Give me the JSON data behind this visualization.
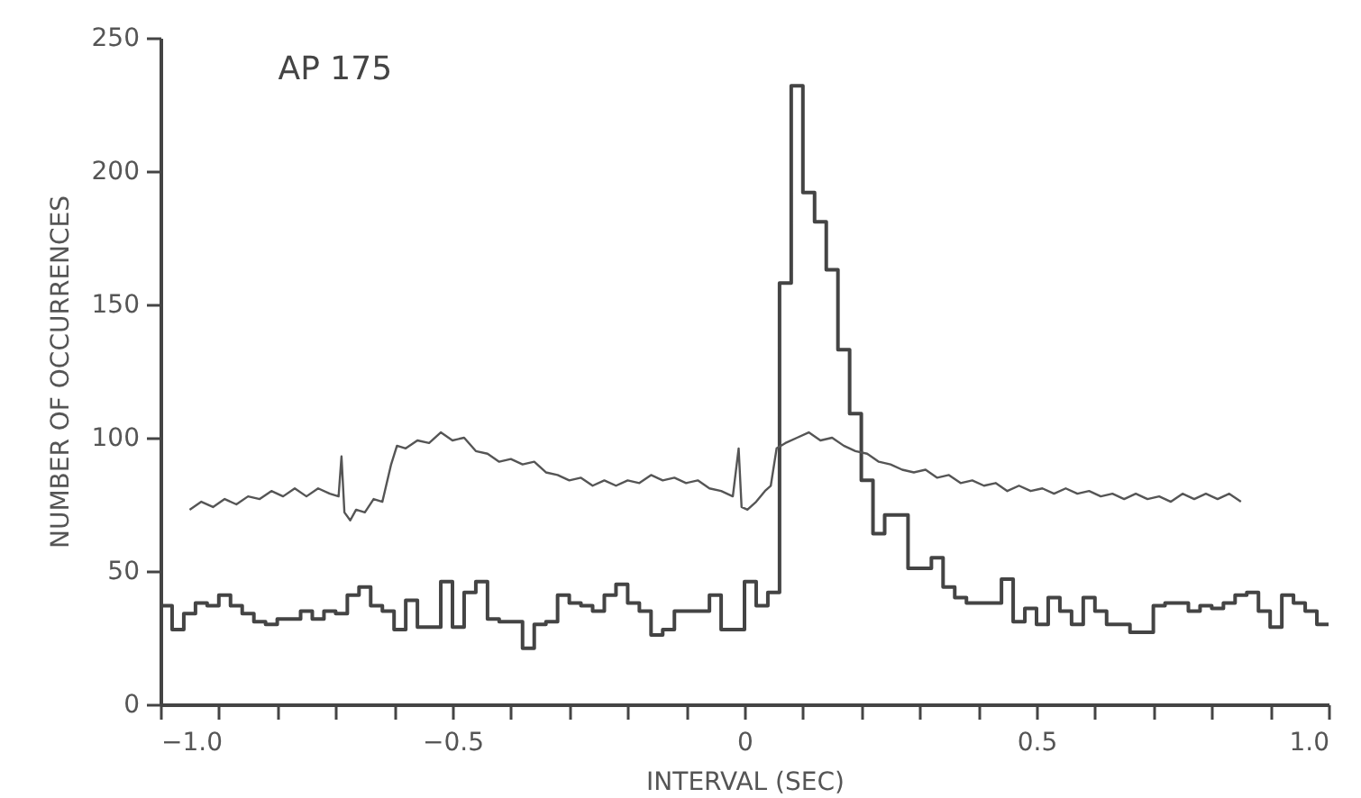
{
  "chart_data": {
    "type": "histogram",
    "title": "AP 175",
    "xlabel": "INTERVAL (SEC)",
    "ylabel": "NUMBER OF OCCURRENCES",
    "xlim": [
      -1,
      1
    ],
    "ylim": [
      0,
      250
    ],
    "xticks": [
      {
        "value": -1,
        "label": "−1.0"
      },
      {
        "value": -0.9,
        "label": null
      },
      {
        "value": -0.8,
        "label": null
      },
      {
        "value": -0.7,
        "label": null
      },
      {
        "value": -0.6,
        "label": null
      },
      {
        "value": -0.5,
        "label": "−0.5"
      },
      {
        "value": -0.4,
        "label": null
      },
      {
        "value": -0.3,
        "label": null
      },
      {
        "value": -0.2,
        "label": null
      },
      {
        "value": -0.1,
        "label": null
      },
      0,
      {
        "value": 0.1,
        "label": null
      },
      {
        "value": 0.2,
        "label": null
      },
      {
        "value": 0.3,
        "label": null
      },
      {
        "value": 0.4,
        "label": null
      },
      0.5,
      {
        "value": 0.6,
        "label": null
      },
      {
        "value": 0.7,
        "label": null
      },
      {
        "value": 0.8,
        "label": null
      },
      {
        "value": 0.9,
        "label": null
      },
      {
        "value": 1,
        "label": "1.0"
      }
    ],
    "yticks": [
      0,
      50,
      100,
      150,
      200,
      250
    ],
    "grid": false,
    "series": [
      {
        "color": "#444444",
        "bins": [
          -1,
          -0.98,
          -0.96,
          -0.94,
          -0.92,
          -0.9,
          -0.88,
          -0.86,
          -0.84,
          -0.82,
          -0.8,
          -0.78,
          -0.76,
          -0.74,
          -0.72,
          -0.7,
          -0.68,
          -0.66,
          -0.64,
          -0.62,
          -0.6,
          -0.58,
          -0.56,
          -0.54,
          -0.52,
          -0.5,
          -0.48,
          -0.46,
          -0.44,
          -0.42,
          -0.4,
          -0.38,
          -0.36,
          -0.34,
          -0.32,
          -0.3,
          -0.28,
          -0.26,
          -0.24,
          -0.22,
          -0.2,
          -0.18,
          -0.16,
          -0.14,
          -0.12,
          -0.1,
          -0.08,
          -0.06,
          -0.04,
          -0.02,
          0,
          0.02,
          0.04,
          0.06,
          0.08,
          0.1,
          0.12,
          0.14,
          0.16,
          0.18,
          0.2,
          0.22,
          0.24,
          0.26,
          0.28,
          0.3,
          0.32,
          0.34,
          0.36,
          0.38,
          0.4,
          0.42,
          0.44,
          0.46,
          0.48,
          0.5,
          0.52,
          0.54,
          0.56,
          0.58,
          0.6,
          0.62,
          0.64,
          0.66,
          0.68,
          0.7,
          0.72,
          0.74,
          0.76,
          0.78,
          0.8,
          0.82,
          0.84,
          0.86,
          0.88,
          0.9,
          0.92,
          0.94,
          0.96,
          0.98,
          1
        ],
        "values": [
          37,
          28,
          34,
          38,
          37,
          41,
          37,
          34,
          31,
          30,
          32,
          32,
          35,
          32,
          35,
          34,
          41,
          44,
          37,
          35,
          28,
          39,
          29,
          29,
          46,
          29,
          42,
          46,
          32,
          31,
          31,
          21,
          30,
          31,
          41,
          38,
          37,
          35,
          41,
          45,
          38,
          35,
          26,
          28,
          35,
          35,
          35,
          41,
          28,
          28,
          46,
          37,
          42,
          158,
          232,
          192,
          181,
          163,
          133,
          109,
          84,
          64,
          71,
          71,
          51,
          51,
          55,
          44,
          40,
          38,
          38,
          38,
          47,
          31,
          36,
          30,
          40,
          35,
          30,
          40,
          35,
          30,
          30,
          27,
          27,
          37,
          38,
          38,
          35,
          37,
          36,
          38,
          41,
          42,
          35,
          29,
          41,
          38,
          35,
          30
        ]
      },
      {
        "type": "line",
        "color": "#555555",
        "x": [
          -0.95,
          -0.93,
          -0.91,
          -0.89,
          -0.87,
          -0.85,
          -0.83,
          -0.81,
          -0.79,
          -0.77,
          -0.75,
          -0.73,
          -0.71,
          -0.695,
          -0.69,
          -0.685,
          -0.675,
          -0.665,
          -0.65,
          -0.635,
          -0.62,
          -0.605,
          -0.595,
          -0.58,
          -0.56,
          -0.54,
          -0.52,
          -0.5,
          -0.48,
          -0.46,
          -0.44,
          -0.42,
          -0.4,
          -0.38,
          -0.36,
          -0.34,
          -0.32,
          -0.3,
          -0.28,
          -0.26,
          -0.24,
          -0.22,
          -0.2,
          -0.18,
          -0.16,
          -0.14,
          -0.12,
          -0.1,
          -0.08,
          -0.06,
          -0.04,
          -0.02,
          -0.01,
          -0.005,
          0.005,
          0.02,
          0.035,
          0.045,
          0.055,
          0.07,
          0.09,
          0.11,
          0.13,
          0.15,
          0.17,
          0.19,
          0.21,
          0.23,
          0.25,
          0.27,
          0.29,
          0.31,
          0.33,
          0.35,
          0.37,
          0.39,
          0.41,
          0.43,
          0.45,
          0.47,
          0.49,
          0.51,
          0.53,
          0.55,
          0.57,
          0.59,
          0.61,
          0.63,
          0.65,
          0.67,
          0.69,
          0.71,
          0.73,
          0.75,
          0.77,
          0.79,
          0.81,
          0.83,
          0.85
        ],
        "values": [
          73,
          76,
          74,
          77,
          75,
          78,
          77,
          80,
          78,
          81,
          78,
          81,
          79,
          78,
          93,
          72,
          69,
          73,
          72,
          77,
          76,
          90,
          97,
          96,
          99,
          98,
          102,
          99,
          100,
          95,
          94,
          91,
          92,
          90,
          91,
          87,
          86,
          84,
          85,
          82,
          84,
          82,
          84,
          83,
          86,
          84,
          85,
          83,
          84,
          81,
          80,
          78,
          96,
          74,
          73,
          76,
          80,
          82,
          96,
          98,
          100,
          102,
          99,
          100,
          97,
          95,
          94,
          91,
          90,
          88,
          87,
          88,
          85,
          86,
          83,
          84,
          82,
          83,
          80,
          82,
          80,
          81,
          79,
          81,
          79,
          80,
          78,
          79,
          77,
          79,
          77,
          78,
          76,
          79,
          77,
          79,
          77,
          79,
          76
        ]
      }
    ]
  }
}
